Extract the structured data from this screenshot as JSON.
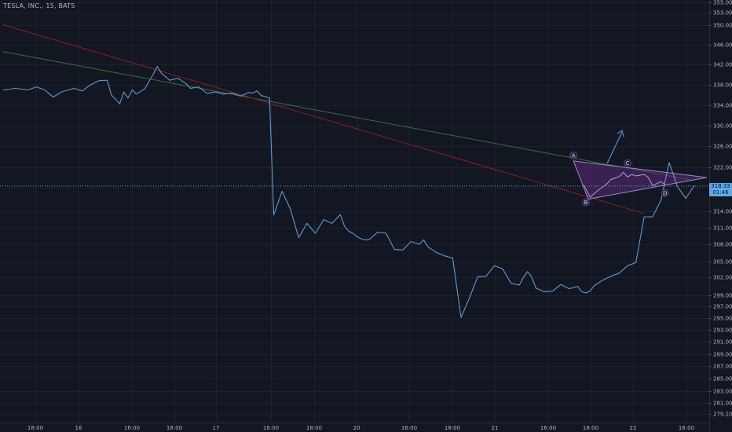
{
  "header": {
    "title": "TESLA, INC., 15, BATS"
  },
  "price_badge": {
    "price": "318.33",
    "countdown": "01:46"
  },
  "colors": {
    "background": "#131722",
    "grid": "#1e2230",
    "axis_text": "#b2b5be",
    "price_line": "#5d9ad4",
    "current_price": "#5fa9e8",
    "green_trendline": "#3b6e3c",
    "red_trendline": "#8e1c22",
    "pattern_fill": "#5a2a7a",
    "pattern_edge": "#9d8bbf",
    "arrow": "#4a8fd1"
  },
  "chart_data": {
    "type": "line",
    "title": "TESLA, INC., 15, BATS",
    "x_tick_labels": [
      "18:00",
      "16",
      "16:00",
      "18:00",
      "17",
      "16:00",
      "18:00",
      "20",
      "16:00",
      "18:00",
      "21",
      "16:00",
      "18:00",
      "22",
      "16:00"
    ],
    "y_tick_labels": [
      "355.00",
      "353.00",
      "350.00",
      "346.00",
      "342.00",
      "338.00",
      "334.00",
      "330.00",
      "326.00",
      "322.00",
      "318.00",
      "314.00",
      "311.00",
      "308.00",
      "305.00",
      "302.00",
      "299.00",
      "297.00",
      "295.00",
      "293.00",
      "291.00",
      "289.00",
      "287.00",
      "285.00",
      "283.00",
      "281.00",
      "279.10"
    ],
    "ylim": [
      277.9,
      356.5
    ],
    "current_price": 318.33,
    "grid": true,
    "series": [
      {
        "x": [
          0,
          3,
          6,
          8,
          10,
          12,
          14,
          17,
          19,
          21,
          23,
          25,
          26,
          27,
          28,
          29,
          30,
          31,
          32,
          34,
          36,
          37,
          38,
          40,
          42,
          44,
          45,
          47,
          49,
          51,
          53,
          55,
          57,
          59,
          60,
          61,
          62,
          63,
          64,
          65,
          67,
          69,
          70,
          71,
          73,
          75,
          77,
          79,
          81,
          82,
          83,
          84,
          85,
          86,
          87,
          88,
          90,
          92,
          94,
          96,
          98,
          100,
          101,
          102,
          104,
          106,
          108,
          110,
          112,
          114,
          116,
          118,
          120,
          122,
          124,
          125,
          126,
          127,
          128,
          130,
          132,
          134,
          136,
          138,
          139,
          140,
          141,
          142,
          144,
          146,
          148,
          150,
          152,
          154,
          156,
          158,
          160,
          162,
          164,
          166
        ],
        "values": [
          337.0,
          337.3,
          337.0,
          337.6,
          337.0,
          335.6,
          336.6,
          337.3,
          336.8,
          338.0,
          338.8,
          338.9,
          336.0,
          335.2,
          334.3,
          336.6,
          335.4,
          337.0,
          336.2,
          337.2,
          340.0,
          341.6,
          340.3,
          338.9,
          339.3,
          338.2,
          337.3,
          337.6,
          336.3,
          336.6,
          336.2,
          336.4,
          335.8,
          336.5,
          336.4,
          336.8,
          335.9,
          335.7,
          335.4,
          313.3,
          317.4,
          314.4,
          311.8,
          309.2,
          311.8,
          310.0,
          312.5,
          311.8,
          313.4,
          311.3,
          310.4,
          310.0,
          309.4,
          309.0,
          308.8,
          308.9,
          310.2,
          310.0,
          307.1,
          307.0,
          308.5,
          308.0,
          308.8,
          307.6,
          306.6,
          306.0,
          305.6,
          295.1,
          298.5,
          302.1,
          302.2,
          304.2,
          303.6,
          301.0,
          300.7,
          302.0,
          303.1,
          302.0,
          300.2,
          299.6,
          299.7,
          300.8,
          300.1,
          300.5,
          299.6,
          299.4,
          299.7,
          300.6,
          301.5,
          302.2,
          302.8,
          304.2,
          304.8,
          313.0,
          313.0,
          315.8,
          322.9,
          318.2,
          316.2,
          318.4
        ]
      }
    ],
    "annotations": [
      {
        "label": "A",
        "x": 137,
        "y": 323.2
      },
      {
        "label": "B",
        "x": 140,
        "y": 316.6
      },
      {
        "label": "C",
        "x": 150,
        "y": 321.6
      },
      {
        "label": "D",
        "x": 159,
        "y": 318.2
      }
    ],
    "pattern": {
      "points_after_A": [
        [
          139.5,
          318.5
        ],
        [
          141,
          316.4
        ],
        [
          143,
          317.6
        ],
        [
          145,
          318.7
        ],
        [
          146,
          319.6
        ],
        [
          148,
          320.2
        ],
        [
          149,
          321.0
        ],
        [
          150,
          320.1
        ],
        [
          151,
          320.6
        ],
        [
          152,
          320.3
        ],
        [
          154,
          320.6
        ],
        [
          155,
          320.0
        ],
        [
          156,
          318.4
        ],
        [
          157,
          318.8
        ],
        [
          158,
          319.2
        ],
        [
          159,
          318.6
        ]
      ]
    },
    "trendlines": [
      {
        "name": "green",
        "from": [
          0,
          344.6
        ],
        "to": [
          166,
          319.4
        ]
      },
      {
        "name": "red",
        "from": [
          0,
          350.1
        ],
        "to": [
          154,
          313.6
        ]
      }
    ]
  }
}
